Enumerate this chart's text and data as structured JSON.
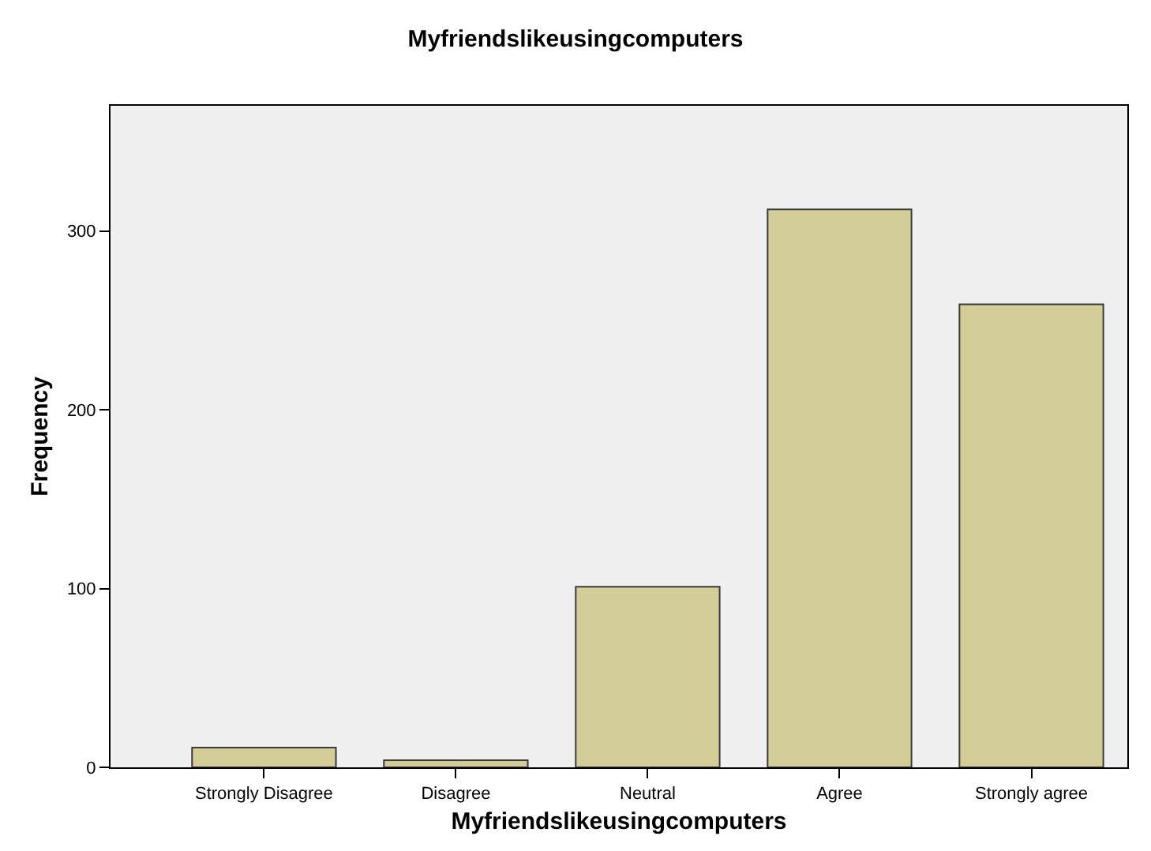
{
  "chart_data": {
    "type": "bar",
    "title": "Myfriendslikeusingcomputers",
    "xlabel": "Myfriendslikeusingcomputers",
    "ylabel": "Frequency",
    "categories": [
      "Strongly Disagree",
      "Disagree",
      "Neutral",
      "Agree",
      "Strongly agree"
    ],
    "values": [
      11,
      4,
      101,
      312,
      259
    ],
    "color": "#d3ce97",
    "ylim": [
      0,
      370
    ],
    "yticks": [
      0,
      100,
      200,
      300
    ],
    "grid": false
  }
}
